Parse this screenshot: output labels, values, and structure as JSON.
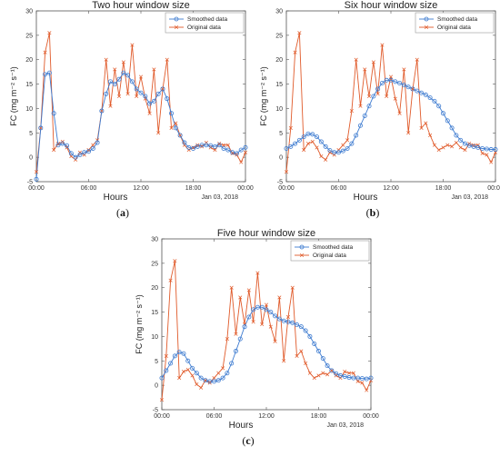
{
  "chart_data": [
    {
      "type": "line",
      "title": "Two hour window size",
      "xlabel": "Hours",
      "ylabel": "FC (mg m⁻² s⁻¹)",
      "date_label": "Jan 03, 2018",
      "caption": "(a)",
      "x_ticks": [
        "00:00",
        "06:00",
        "12:00",
        "18:00",
        "00:00"
      ],
      "y_ticks": [
        -5,
        0,
        5,
        10,
        15,
        20,
        25,
        30
      ],
      "ylim": [
        -5,
        30
      ],
      "x_hours": [
        0,
        0.5,
        1,
        1.5,
        2,
        2.5,
        3,
        3.5,
        4,
        4.5,
        5,
        5.5,
        6,
        6.5,
        7,
        7.5,
        8,
        8.5,
        9,
        9.5,
        10,
        10.5,
        11,
        11.5,
        12,
        12.5,
        13,
        13.5,
        14,
        14.5,
        15,
        15.5,
        16,
        16.5,
        17,
        17.5,
        18,
        18.5,
        19,
        19.5,
        20,
        20.5,
        21,
        21.5,
        22,
        22.5,
        23,
        23.5,
        24
      ],
      "legend_position": "top-right",
      "series": [
        {
          "name": "Smoothed data",
          "color": "#3d7bd0",
          "marker": "circle",
          "values": [
            -4.5,
            6,
            17,
            17.3,
            9,
            2.5,
            2.8,
            2.4,
            0.8,
            0,
            0.5,
            1,
            1.2,
            1.8,
            3,
            9.5,
            13,
            15.5,
            15,
            16,
            17.3,
            16.8,
            15.5,
            14,
            13.2,
            12.5,
            11,
            11.5,
            13,
            14,
            12,
            9,
            6,
            4.5,
            3,
            2,
            1.8,
            2.2,
            2.5,
            2.5,
            2.4,
            2.2,
            2.5,
            1.8,
            1.5,
            1,
            0.8,
            1.5,
            2
          ]
        },
        {
          "name": "Original data",
          "color": "#e05a2a",
          "marker": "x",
          "values": [
            -3,
            6,
            21.5,
            25.5,
            1.5,
            2.8,
            3.2,
            2,
            0.2,
            -0.5,
            1,
            0.5,
            1.5,
            2.5,
            3.5,
            9.5,
            20,
            10.5,
            18,
            12.5,
            19.5,
            13,
            23,
            12.5,
            16.5,
            12,
            9,
            18,
            5,
            14,
            20,
            6,
            7,
            4.5,
            2.5,
            1.5,
            2,
            2.5,
            2.2,
            3,
            2,
            1.5,
            2.8,
            2.5,
            2.5,
            0.8,
            0.5,
            -1,
            1
          ]
        }
      ]
    },
    {
      "type": "line",
      "title": "Six hour window size",
      "xlabel": "Hours",
      "ylabel": "FC (mg m⁻² s⁻¹)",
      "date_label": "Jan 03, 2018",
      "caption": "(b)",
      "x_ticks": [
        "00:00",
        "06:00",
        "12:00",
        "18:00",
        "00:00"
      ],
      "y_ticks": [
        -5,
        0,
        5,
        10,
        15,
        20,
        25,
        30
      ],
      "ylim": [
        -5,
        30
      ],
      "x_hours": [
        0,
        0.5,
        1,
        1.5,
        2,
        2.5,
        3,
        3.5,
        4,
        4.5,
        5,
        5.5,
        6,
        6.5,
        7,
        7.5,
        8,
        8.5,
        9,
        9.5,
        10,
        10.5,
        11,
        11.5,
        12,
        12.5,
        13,
        13.5,
        14,
        14.5,
        15,
        15.5,
        16,
        16.5,
        17,
        17.5,
        18,
        18.5,
        19,
        19.5,
        20,
        20.5,
        21,
        21.5,
        22,
        22.5,
        23,
        23.5,
        24
      ],
      "legend_position": "top-right",
      "series": [
        {
          "name": "Smoothed data",
          "color": "#3d7bd0",
          "marker": "circle",
          "values": [
            1.8,
            2.2,
            2.8,
            3.5,
            4.2,
            4.8,
            4.7,
            4.2,
            3.2,
            2.2,
            1.4,
            1.0,
            1.0,
            1.3,
            1.8,
            2.8,
            4.5,
            6.5,
            8.5,
            10.5,
            12.5,
            14,
            15.2,
            15.8,
            15.8,
            15.5,
            15.2,
            14.8,
            14.4,
            14,
            13.6,
            13.2,
            12.8,
            12.2,
            11.5,
            10.5,
            9,
            7.5,
            6,
            4.5,
            3.5,
            2.8,
            2.4,
            2.2,
            2,
            1.8,
            1.7,
            1.6,
            1.6
          ]
        },
        {
          "name": "Original data",
          "color": "#e05a2a",
          "marker": "x",
          "values": [
            -3,
            6,
            21.5,
            25.5,
            1.5,
            2.8,
            3.2,
            2,
            0.2,
            -0.5,
            1,
            0.5,
            1.5,
            2.5,
            3.5,
            9.5,
            20,
            10.5,
            18,
            12.5,
            19.5,
            13,
            23,
            12.5,
            16.5,
            12,
            9,
            18,
            5,
            14,
            20,
            6,
            7,
            4.5,
            2.5,
            1.5,
            2,
            2.5,
            2.2,
            3,
            2,
            1.5,
            2.8,
            2.5,
            2.5,
            0.8,
            0.5,
            -1,
            1
          ]
        }
      ]
    },
    {
      "type": "line",
      "title": "Five hour window size",
      "xlabel": "Hours",
      "ylabel": "FC (mg m⁻² s⁻¹)",
      "date_label": "Jan 03, 2018",
      "caption": "(c)",
      "x_ticks": [
        "00:00",
        "06:00",
        "12:00",
        "18:00",
        "00:00"
      ],
      "y_ticks": [
        -5,
        0,
        5,
        10,
        15,
        20,
        25,
        30
      ],
      "ylim": [
        -5,
        30
      ],
      "x_hours": [
        0,
        0.5,
        1,
        1.5,
        2,
        2.5,
        3,
        3.5,
        4,
        4.5,
        5,
        5.5,
        6,
        6.5,
        7,
        7.5,
        8,
        8.5,
        9,
        9.5,
        10,
        10.5,
        11,
        11.5,
        12,
        12.5,
        13,
        13.5,
        14,
        14.5,
        15,
        15.5,
        16,
        16.5,
        17,
        17.5,
        18,
        18.5,
        19,
        19.5,
        20,
        20.5,
        21,
        21.5,
        22,
        22.5,
        23,
        23.5,
        24
      ],
      "legend_position": "top-right",
      "series": [
        {
          "name": "Smoothed data",
          "color": "#3d7bd0",
          "marker": "circle",
          "values": [
            1.5,
            3,
            4.5,
            6,
            6.8,
            6.5,
            5,
            3.5,
            2.5,
            1.5,
            1,
            0.8,
            0.8,
            1,
            1.5,
            2.5,
            4.5,
            7,
            9.5,
            12,
            14,
            15.5,
            16,
            16,
            15.5,
            15,
            14.2,
            13.6,
            13.2,
            13,
            12.8,
            12.4,
            12,
            11.2,
            10,
            8.5,
            7,
            5.5,
            4,
            3,
            2.4,
            2,
            1.8,
            1.6,
            1.5,
            1.5,
            1.4,
            1.3,
            1.5
          ]
        },
        {
          "name": "Original data",
          "color": "#e05a2a",
          "marker": "x",
          "values": [
            -3,
            6,
            21.5,
            25.5,
            1.5,
            2.8,
            3.2,
            2,
            0.2,
            -0.5,
            1,
            0.5,
            1.5,
            2.5,
            3.5,
            9.5,
            20,
            10.5,
            18,
            12.5,
            19.5,
            13,
            23,
            12.5,
            16.5,
            12,
            9,
            18,
            5,
            14,
            20,
            6,
            7,
            4.5,
            2.5,
            1.5,
            2,
            2.5,
            2.2,
            3,
            2,
            1.5,
            2.8,
            2.5,
            2.5,
            0.8,
            0.5,
            -1,
            1
          ]
        }
      ]
    }
  ]
}
